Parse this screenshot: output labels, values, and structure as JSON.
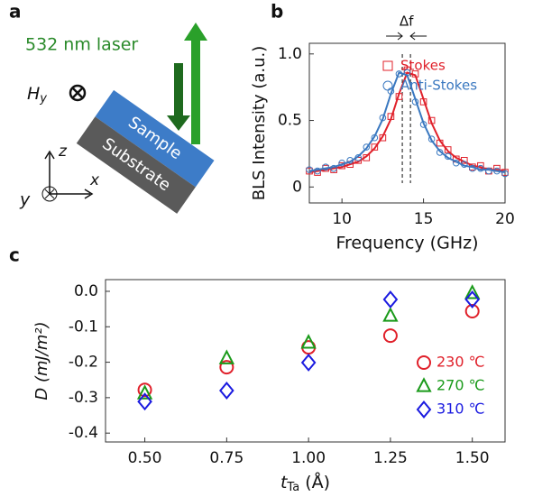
{
  "panel_labels": [
    "a",
    "b",
    "c"
  ],
  "diagram": {
    "laser": "532 nm laser",
    "field": "H",
    "field_sub": "y",
    "sample": "Sample",
    "substrate": "Substrate",
    "axis_z": "z",
    "axis_x": "x",
    "axis_y": "y"
  },
  "chart_data": [
    {
      "type": "scatter",
      "y_label": "BLS Intensity (a.u.)",
      "x_label": "Frequency (GHz)",
      "annotation": "Δf",
      "xlim": [
        8,
        20
      ],
      "xticks": [
        10,
        15,
        20
      ],
      "ylim": [
        -0.12,
        1.08
      ],
      "yticks": [
        0,
        0.5,
        {
          "value": 1,
          "label": "1.0"
        }
      ],
      "vlines": [
        13.7,
        14.2
      ],
      "x": [
        8,
        8.5,
        9,
        9.5,
        10,
        10.5,
        11,
        11.5,
        12,
        12.5,
        13,
        13.5,
        14,
        14.5,
        15,
        15.5,
        16,
        16.5,
        17,
        17.5,
        18,
        18.5,
        19,
        19.5,
        20
      ],
      "series": [
        {
          "name": "Stokes",
          "color": "#e0202a",
          "marker": "square",
          "values": [
            0.12,
            0.11,
            0.14,
            0.13,
            0.16,
            0.17,
            0.2,
            0.22,
            0.3,
            0.37,
            0.53,
            0.68,
            0.88,
            0.85,
            0.64,
            0.5,
            0.33,
            0.28,
            0.21,
            0.2,
            0.15,
            0.16,
            0.12,
            0.14,
            0.11
          ],
          "fit": [
            0.11,
            0.12,
            0.13,
            0.14,
            0.15,
            0.17,
            0.19,
            0.23,
            0.29,
            0.38,
            0.51,
            0.7,
            0.86,
            0.84,
            0.66,
            0.48,
            0.35,
            0.27,
            0.22,
            0.19,
            0.16,
            0.15,
            0.13,
            0.13,
            0.12
          ]
        },
        {
          "name": "Anti-Stokes",
          "color": "#3a78c0",
          "marker": "circle",
          "values": [
            0.13,
            0.12,
            0.15,
            0.14,
            0.18,
            0.2,
            0.22,
            0.3,
            0.37,
            0.52,
            0.72,
            0.85,
            0.86,
            0.64,
            0.47,
            0.36,
            0.26,
            0.23,
            0.18,
            0.17,
            0.14,
            0.14,
            0.12,
            0.12,
            0.1
          ],
          "fit": [
            0.12,
            0.13,
            0.14,
            0.15,
            0.17,
            0.19,
            0.23,
            0.29,
            0.38,
            0.51,
            0.7,
            0.86,
            0.84,
            0.66,
            0.48,
            0.35,
            0.27,
            0.22,
            0.19,
            0.16,
            0.15,
            0.13,
            0.13,
            0.12,
            0.11
          ]
        }
      ]
    },
    {
      "type": "scatter",
      "y_label": "D  (mJ/m²)",
      "x_label": "t",
      "x_label_sub": "Ta",
      "x_label_rest": " (Å)",
      "xlim": [
        0.38,
        1.6
      ],
      "xticks": [
        {
          "value": 0.5,
          "label": "0.50"
        },
        {
          "value": 0.75,
          "label": "0.75"
        },
        {
          "value": 1,
          "label": "1.00"
        },
        {
          "value": 1.25,
          "label": "1.25"
        },
        {
          "value": 1.5,
          "label": "1.50"
        }
      ],
      "ylim": [
        -0.425,
        0.033
      ],
      "yticks": [
        {
          "value": 0,
          "label": "0.0"
        },
        -0.1,
        -0.2,
        -0.3,
        -0.4
      ],
      "x": [
        0.5,
        0.75,
        1,
        1.25,
        1.5
      ],
      "series": [
        {
          "name": "230 ℃",
          "color": "#e0202a",
          "marker": "circle",
          "values": [
            -0.278,
            -0.214,
            -0.158,
            -0.125,
            -0.056
          ]
        },
        {
          "name": "270 ℃",
          "color": "#1a9a1a",
          "marker": "triangle",
          "values": [
            -0.288,
            -0.189,
            -0.145,
            -0.069,
            -0.005
          ]
        },
        {
          "name": "310 ℃",
          "color": "#1a1ae0",
          "marker": "diamond",
          "values": [
            -0.311,
            -0.28,
            -0.201,
            -0.023,
            -0.023
          ]
        }
      ]
    }
  ]
}
